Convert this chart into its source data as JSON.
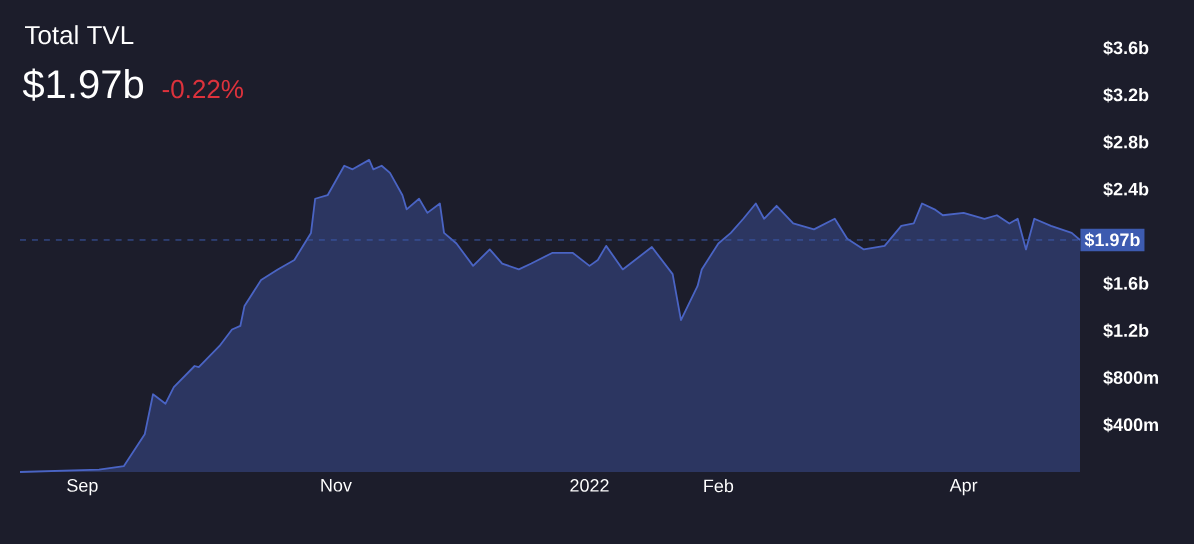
{
  "chart_data": {
    "type": "area",
    "title": "Total TVL",
    "subtitle": "$1.97b",
    "annotations": [
      "-0.22%"
    ],
    "series": [
      {
        "color": "#4a64c4",
        "x": [
          "2021-08-17",
          "2021-09-05",
          "2021-09-11",
          "2021-09-16",
          "2021-09-18",
          "2021-09-21",
          "2021-09-23",
          "2021-09-28",
          "2021-09-29",
          "2021-10-04",
          "2021-10-07",
          "2021-10-09",
          "2021-10-10",
          "2021-10-14",
          "2021-10-18",
          "2021-10-22",
          "2021-10-26",
          "2021-10-27",
          "2021-10-30",
          "2021-11-03",
          "2021-11-05",
          "2021-11-09",
          "2021-11-10",
          "2021-11-12",
          "2021-11-14",
          "2021-11-17",
          "2021-11-18",
          "2021-11-21",
          "2021-11-23",
          "2021-11-26",
          "2021-11-27",
          "2021-11-30",
          "2021-12-04",
          "2021-12-08",
          "2021-12-11",
          "2021-12-15",
          "2021-12-18",
          "2021-12-23",
          "2021-12-28",
          "2022-01-01",
          "2022-01-03",
          "2022-01-05",
          "2022-01-09",
          "2022-01-16",
          "2022-01-21",
          "2022-01-23",
          "2022-01-27",
          "2022-01-28",
          "2022-02-01",
          "2022-02-04",
          "2022-02-07",
          "2022-02-10",
          "2022-02-12",
          "2022-02-15",
          "2022-02-19",
          "2022-02-24",
          "2022-03-01",
          "2022-03-04",
          "2022-03-08",
          "2022-03-13",
          "2022-03-17",
          "2022-03-20",
          "2022-03-22",
          "2022-03-25",
          "2022-03-27",
          "2022-04-01",
          "2022-04-06",
          "2022-04-09",
          "2022-04-12",
          "2022-04-14",
          "2022-04-16",
          "2022-04-18",
          "2022-04-22",
          "2022-04-27",
          "2022-04-29"
        ],
        "values": [
          0,
          20000000.0,
          50000000.0,
          320000000.0,
          660000000.0,
          580000000.0,
          720000000.0,
          900000000.0,
          890000000.0,
          1070000000.0,
          1210000000.0,
          1240000000.0,
          1410000000.0,
          1630000000.0,
          1720000000.0,
          1800000000.0,
          2030000000.0,
          2320000000.0,
          2350000000.0,
          2600000000.0,
          2570000000.0,
          2650000000.0,
          2570000000.0,
          2600000000.0,
          2540000000.0,
          2350000000.0,
          2230000000.0,
          2320000000.0,
          2200000000.0,
          2280000000.0,
          2030000000.0,
          1940000000.0,
          1750000000.0,
          1890000000.0,
          1770000000.0,
          1720000000.0,
          1770000000.0,
          1860000000.0,
          1860000000.0,
          1750000000.0,
          1800000000.0,
          1920000000.0,
          1720000000.0,
          1910000000.0,
          1680000000.0,
          1290000000.0,
          1580000000.0,
          1720000000.0,
          1940000000.0,
          2030000000.0,
          2150000000.0,
          2280000000.0,
          2150000000.0,
          2260000000.0,
          2110000000.0,
          2060000000.0,
          2150000000.0,
          1980000000.0,
          1890000000.0,
          1920000000.0,
          2090000000.0,
          2110000000.0,
          2280000000.0,
          2230000000.0,
          2180000000.0,
          2200000000.0,
          2150000000.0,
          2180000000.0,
          2110000000.0,
          2150000000.0,
          1890000000.0,
          2150000000.0,
          2090000000.0,
          2030000000.0,
          1970000000.0
        ]
      }
    ],
    "xlim": [
      "2021-08-17",
      "2022-04-29"
    ],
    "xticks": [
      {
        "value": "2021-09-01",
        "label": "Sep"
      },
      {
        "value": "2021-11-01",
        "label": "Nov"
      },
      {
        "value": "2022-01-01",
        "label": "2022"
      },
      {
        "value": "2022-02-01",
        "label": "Feb"
      },
      {
        "value": "2022-04-01",
        "label": "Apr"
      }
    ],
    "ylim": [
      0,
      3600000000.0
    ],
    "yticks": [
      {
        "value": 400000000.0,
        "label": "$400m"
      },
      {
        "value": 800000000.0,
        "label": "$800m"
      },
      {
        "value": 1200000000.0,
        "label": "$1.2b"
      },
      {
        "value": 1600000000.0,
        "label": "$1.6b"
      },
      {
        "value": 2400000000.0,
        "label": "$2.4b"
      },
      {
        "value": 2800000000.0,
        "label": "$2.8b"
      },
      {
        "value": 3200000000.0,
        "label": "$3.2b"
      },
      {
        "value": 3600000000.0,
        "label": "$3.6b"
      }
    ],
    "ref_lines": [
      {
        "axis": "y",
        "value": 1970000000.0,
        "label": "$1.97b",
        "color": "#3d5bb0",
        "line_style": "dashed"
      }
    ],
    "marker": "none"
  }
}
